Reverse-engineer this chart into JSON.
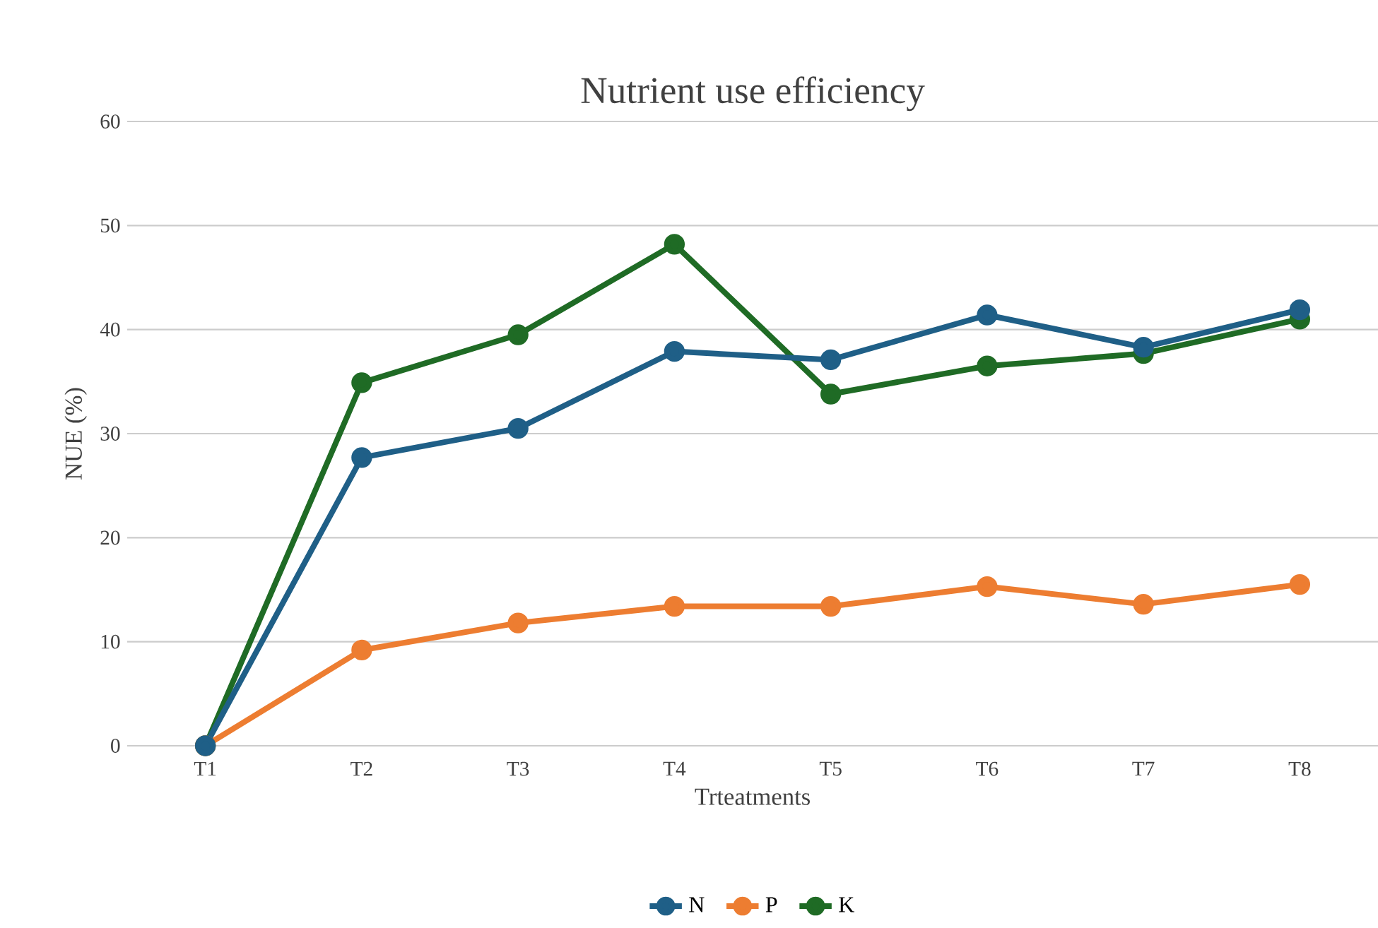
{
  "chart_data": {
    "type": "line",
    "title": "Nutrient use efficiency",
    "xlabel": "Trteatments",
    "ylabel": "NUE (%)",
    "categories": [
      "T1",
      "T2",
      "T3",
      "T4",
      "T5",
      "T6",
      "T7",
      "T8"
    ],
    "series": [
      {
        "name": "N",
        "color": "#1f5f87",
        "values": [
          0,
          27.7,
          30.5,
          37.9,
          37.1,
          41.4,
          38.3,
          41.9
        ]
      },
      {
        "name": "P",
        "color": "#ed7d31",
        "values": [
          0,
          9.2,
          11.8,
          13.4,
          13.4,
          15.3,
          13.6,
          15.5
        ]
      },
      {
        "name": "K",
        "color": "#1f6b25",
        "values": [
          0,
          34.9,
          39.5,
          48.2,
          33.8,
          36.5,
          37.7,
          41.0
        ]
      }
    ],
    "ylim": [
      0,
      60
    ],
    "yticks": [
      0,
      10,
      20,
      30,
      40,
      50,
      60
    ],
    "grid": "y",
    "legend": "bottom",
    "marker": "circle",
    "line_style": "solid"
  }
}
